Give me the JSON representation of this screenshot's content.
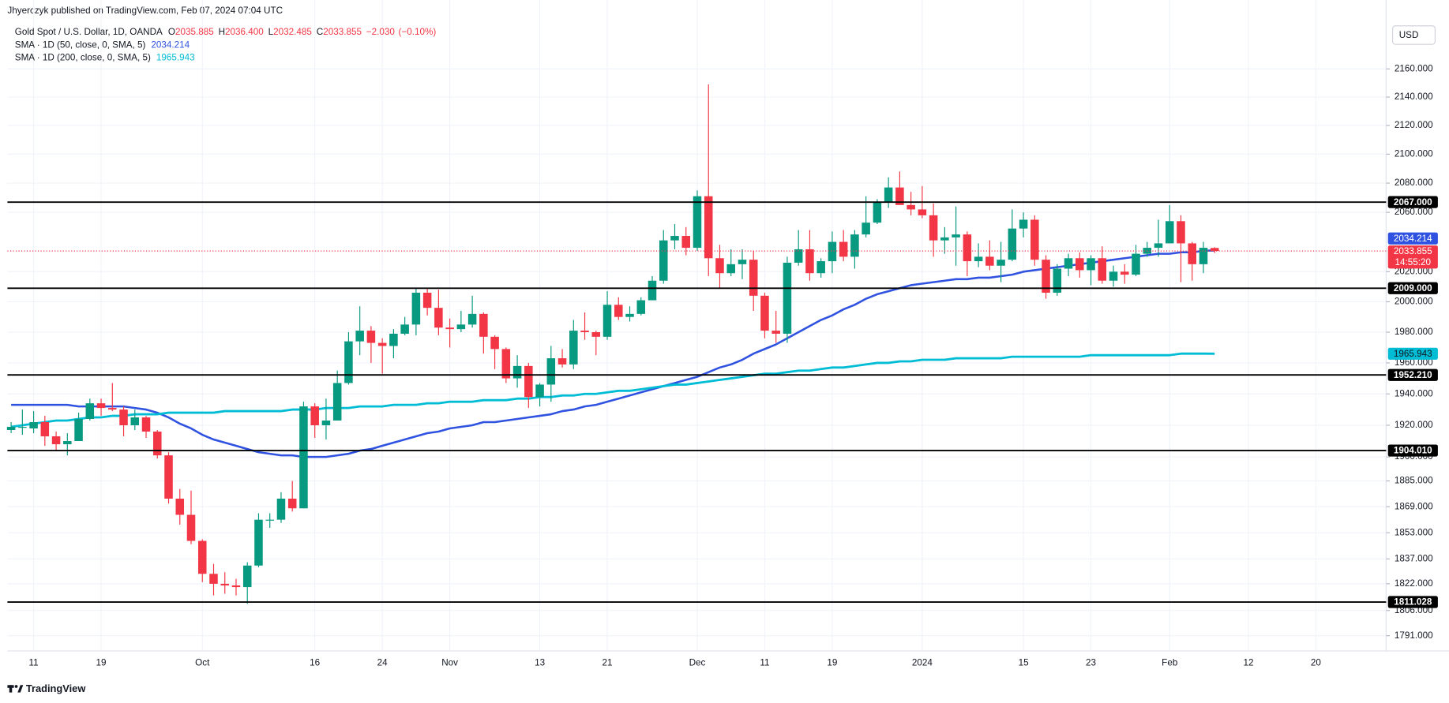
{
  "header": {
    "published": "Jhyerczyk published on TradingView.com, Feb 07, 2024 07:04 UTC",
    "currency": "USD",
    "brand": "TradingView"
  },
  "chart_data": {
    "type": "candlestick",
    "title": "Gold Spot / U.S. Dollar, 1D, OANDA",
    "quote": [
      {
        "key": "O",
        "value": 2035.885,
        "label": "2035.885"
      },
      {
        "key": "H",
        "value": 2036.4,
        "label": "2036.400"
      },
      {
        "key": "L",
        "value": 2032.485,
        "label": "2032.485"
      },
      {
        "key": "C",
        "value": 2033.855,
        "label": "2033.855"
      }
    ],
    "change": {
      "value": -2.03,
      "label": "−2.030"
    },
    "change_pct": {
      "value": -0.1,
      "label": "(−0.10%)"
    },
    "up_color": "#089981",
    "down_color": "#f23645",
    "log_scale": true,
    "grid": true,
    "categories": [
      null,
      null,
      "11",
      null,
      null,
      null,
      null,
      null,
      "19",
      null,
      null,
      null,
      null,
      null,
      null,
      null,
      null,
      "Oct",
      null,
      null,
      null,
      null,
      null,
      null,
      null,
      null,
      null,
      "16",
      null,
      null,
      null,
      null,
      null,
      "24",
      null,
      null,
      null,
      null,
      null,
      "Nov",
      null,
      null,
      null,
      null,
      null,
      null,
      null,
      "13",
      null,
      null,
      null,
      null,
      null,
      "21",
      null,
      null,
      null,
      null,
      null,
      null,
      null,
      "Dec",
      null,
      null,
      null,
      null,
      null,
      "11",
      null,
      null,
      null,
      null,
      null,
      "19",
      null,
      null,
      null,
      null,
      null,
      null,
      null,
      "2024",
      null,
      null,
      null,
      null,
      null,
      null,
      null,
      null,
      "15",
      null,
      null,
      null,
      null,
      null,
      "23",
      null,
      null,
      null,
      null,
      null,
      null,
      "Feb",
      null,
      null,
      null,
      null,
      null,
      null,
      "12",
      null,
      null,
      null,
      null,
      null,
      "20"
    ],
    "open": [
      1917,
      1919,
      1918,
      1922,
      1913,
      1908,
      1910,
      1924,
      1934,
      1931,
      1930,
      1920,
      1925,
      1916,
      1901,
      1874,
      1864,
      1848,
      1828,
      1822,
      1821,
      1820,
      1833,
      1861,
      1861,
      1874,
      1868,
      1932,
      1920,
      1923,
      1947,
      1974,
      1981,
      1973,
      1971,
      1979,
      1985,
      2006,
      1996,
      1983,
      1982,
      1985,
      1992,
      1977,
      1969,
      1950,
      1958,
      1938,
      1946,
      1963,
      1959,
      1981,
      1980,
      1977,
      1998,
      1990,
      1992,
      2001,
      2014,
      2041,
      2044,
      2036,
      2071,
      2029,
      2019,
      2025,
      2028,
      2004,
      1981,
      1979,
      2026,
      2035,
      2019,
      2027,
      2040,
      2030,
      2045,
      2053,
      2067,
      2077,
      2065,
      2062,
      2058,
      2041,
      2043,
      2045,
      2027,
      2030,
      2024,
      2028,
      2049,
      2055,
      2028,
      2006,
      2022,
      2029,
      2021,
      2029,
      2014,
      2020,
      2018,
      2032,
      2036,
      2039,
      2054,
      2039,
      2025,
      2035.885,
      null,
      null,
      null,
      null,
      null,
      null,
      null,
      null,
      null
    ],
    "high": [
      1922,
      1930,
      1929,
      1926,
      1916,
      1915,
      1928,
      1937,
      1937,
      1947,
      1932,
      1930,
      1926,
      1917,
      1903,
      1880,
      1879,
      1849,
      1834,
      1829,
      1825,
      1835,
      1865,
      1865,
      1878,
      1885,
      1935,
      1934,
      1937,
      1955,
      1980,
      1997,
      1984,
      1976,
      1982,
      1990,
      2009,
      2009,
      2008,
      1989,
      1994,
      2004,
      1993,
      1978,
      1970,
      1965,
      1960,
      1947,
      1971,
      1969,
      1988,
      1993,
      1981,
      2007,
      2003,
      1997,
      2003,
      2017,
      2048,
      2052,
      2050,
      2075,
      2149,
      2038,
      2035,
      2035,
      2034,
      2006,
      1994,
      2030,
      2048,
      2048,
      2029,
      2047,
      2048,
      2048,
      2071,
      2069,
      2084,
      2088,
      2074,
      2078,
      2066,
      2050,
      2064,
      2047,
      2039,
      2041,
      2040,
      2062,
      2060,
      2058,
      2031,
      2025,
      2032,
      2033,
      2031,
      2037,
      2024,
      2025,
      2038,
      2040,
      2055,
      2065,
      2058,
      2040,
      2040,
      2036.4,
      null,
      null,
      null,
      null,
      null,
      null,
      null,
      null,
      null
    ],
    "low": [
      1915,
      1914,
      1915,
      1907,
      1904,
      1901,
      1910,
      1923,
      1926,
      1929,
      1913,
      1917,
      1912,
      1899,
      1871,
      1858,
      1846,
      1823,
      1815,
      1816,
      1815,
      1810,
      1832,
      1856,
      1859,
      1866,
      1868,
      1912,
      1911,
      1923,
      1946,
      1965,
      1960,
      1953,
      1963,
      1978,
      1978,
      1991,
      1978,
      1970,
      1980,
      1983,
      1966,
      1956,
      1947,
      1944,
      1931,
      1932,
      1935,
      1957,
      1956,
      1975,
      1965,
      1975,
      1988,
      1987,
      1991,
      2001,
      2012,
      2035,
      2031,
      2034,
      2017,
      2009,
      2017,
      2015,
      1994,
      1976,
      1973,
      1973,
      2024,
      2014,
      2016,
      2019,
      2027,
      2022,
      2043,
      2052,
      2063,
      2066,
      2058,
      2056,
      2030,
      2032,
      2024,
      2017,
      2023,
      2021,
      2013,
      2027,
      2043,
      2024,
      2002,
      2004,
      2017,
      2016,
      2011,
      2012,
      2010,
      2012,
      2017,
      2030,
      2030,
      2039,
      2013,
      2014,
      2019,
      2032.485,
      null,
      null,
      null,
      null,
      null,
      null,
      null,
      null,
      null
    ],
    "close": [
      1919,
      1919,
      1922,
      1913,
      1908,
      1910,
      1924,
      1934,
      1931,
      1930,
      1920,
      1925,
      1916,
      1901,
      1874,
      1864,
      1848,
      1828,
      1822,
      1821,
      1820,
      1833,
      1861,
      1861,
      1874,
      1868,
      1932,
      1920,
      1923,
      1947,
      1974,
      1981,
      1973,
      1971,
      1979,
      1985,
      2006,
      1996,
      1983,
      1982,
      1985,
      1992,
      1977,
      1969,
      1950,
      1958,
      1938,
      1946,
      1963,
      1959,
      1981,
      1980,
      1977,
      1998,
      1990,
      1992,
      2001,
      2014,
      2041,
      2044,
      2036,
      2071,
      2029,
      2019,
      2025,
      2028,
      2004,
      1981,
      1979,
      2026,
      2035,
      2019,
      2027,
      2040,
      2030,
      2045,
      2053,
      2067,
      2077,
      2065,
      2062,
      2058,
      2041,
      2043,
      2045,
      2027,
      2030,
      2024,
      2028,
      2049,
      2055,
      2028,
      2006,
      2022,
      2029,
      2021,
      2029,
      2014,
      2020,
      2018,
      2032,
      2036,
      2039,
      2054,
      2039,
      2025,
      2036,
      2033.855,
      null,
      null,
      null,
      null,
      null,
      null,
      null,
      null,
      null
    ],
    "series": [
      {
        "name": "SMA · 1D (50, close, 0, SMA, 5)",
        "color": "#2f52e0",
        "last": {
          "value": 2034.214,
          "label": "2034.214"
        },
        "values": [
          1933,
          1933,
          1933,
          1933,
          1933,
          1933,
          1932,
          1932,
          1932,
          1932,
          1932,
          1931,
          1930,
          1928,
          1925,
          1921,
          1918,
          1914,
          1911,
          1909,
          1907,
          1905,
          1903,
          1902,
          1901,
          1901,
          1900,
          1900,
          1900,
          1901,
          1902,
          1904,
          1905,
          1907,
          1909,
          1911,
          1913,
          1915,
          1916,
          1918,
          1919,
          1920,
          1922,
          1922,
          1923,
          1924,
          1925,
          1926,
          1927,
          1929,
          1930,
          1932,
          1933,
          1935,
          1937,
          1939,
          1941,
          1943,
          1945,
          1947,
          1949,
          1951,
          1954,
          1957,
          1959,
          1962,
          1966,
          1969,
          1972,
          1976,
          1980,
          1984,
          1988,
          1991,
          1995,
          1998,
          2002,
          2005,
          2007,
          2009,
          2011,
          2012,
          2013,
          2014,
          2015,
          2015,
          2016,
          2016,
          2017,
          2018,
          2020,
          2021,
          2022,
          2023,
          2024,
          2025,
          2026,
          2027,
          2028,
          2029,
          2030,
          2031,
          2032,
          2032,
          2033,
          2033,
          2034,
          2034.214,
          null,
          null,
          null,
          null,
          null,
          null,
          null,
          null,
          null
        ]
      },
      {
        "name": "SMA · 1D (200, close, 0, SMA, 5)",
        "color": "#00bcd4",
        "last": {
          "value": 1965.943,
          "label": "1965.943"
        },
        "values": [
          1919,
          1920,
          1921,
          1922,
          1923,
          1923,
          1924,
          1925,
          1925,
          1926,
          1926,
          1927,
          1927,
          1927,
          1928,
          1928,
          1928,
          1928,
          1928,
          1929,
          1929,
          1929,
          1929,
          1929,
          1929,
          1930,
          1930,
          1930,
          1931,
          1931,
          1931,
          1932,
          1932,
          1932,
          1933,
          1933,
          1933,
          1934,
          1934,
          1935,
          1935,
          1935,
          1936,
          1936,
          1936,
          1937,
          1937,
          1938,
          1938,
          1939,
          1939,
          1940,
          1940,
          1941,
          1942,
          1942,
          1943,
          1944,
          1945,
          1946,
          1946,
          1947,
          1948,
          1949,
          1950,
          1951,
          1952,
          1953,
          1953,
          1954,
          1955,
          1955,
          1956,
          1957,
          1957,
          1958,
          1959,
          1960,
          1960,
          1961,
          1961,
          1962,
          1962,
          1962,
          1963,
          1963,
          1963,
          1963,
          1963,
          1964,
          1964,
          1964,
          1964,
          1964,
          1964,
          1964,
          1965,
          1965,
          1965,
          1965,
          1965,
          1965,
          1965,
          1965,
          1966,
          1966,
          1966,
          1965.943,
          null,
          null,
          null,
          null,
          null,
          null,
          null,
          null,
          null
        ]
      }
    ],
    "levels": [
      {
        "value": 2067,
        "label": "2067.000"
      },
      {
        "value": 2009,
        "label": "2009.000"
      },
      {
        "value": 1952.21,
        "label": "1952.210"
      },
      {
        "value": 1904.01,
        "label": "1904.010"
      },
      {
        "value": 1811.028,
        "label": "1811.028"
      }
    ],
    "last_price": {
      "value": 2033.855,
      "label": "2033.855"
    },
    "countdown": "14:55:20",
    "ylim": [
      1782,
      2195
    ],
    "yticks": [
      {
        "value": 2160,
        "label": "2160.000"
      },
      {
        "value": 2140,
        "label": "2140.000"
      },
      {
        "value": 2120,
        "label": "2120.000"
      },
      {
        "value": 2100,
        "label": "2100.000"
      },
      {
        "value": 2080,
        "label": "2080.000"
      },
      {
        "value": 2060,
        "label": "2060.000"
      },
      {
        "value": 2020,
        "label": "2020.000"
      },
      {
        "value": 2000,
        "label": "2000.000"
      },
      {
        "value": 1980,
        "label": "1980.000"
      },
      {
        "value": 1960,
        "label": "1960.000"
      },
      {
        "value": 1940,
        "label": "1940.000"
      },
      {
        "value": 1920,
        "label": "1920.000"
      },
      {
        "value": 1900,
        "label": "1900.000"
      },
      {
        "value": 1885,
        "label": "1885.000"
      },
      {
        "value": 1869,
        "label": "1869.000"
      },
      {
        "value": 1853,
        "label": "1853.000"
      },
      {
        "value": 1837,
        "label": "1837.000"
      },
      {
        "value": 1822,
        "label": "1822.000"
      },
      {
        "value": 1806,
        "label": "1806.000"
      },
      {
        "value": 1791,
        "label": "1791.000"
      }
    ]
  }
}
